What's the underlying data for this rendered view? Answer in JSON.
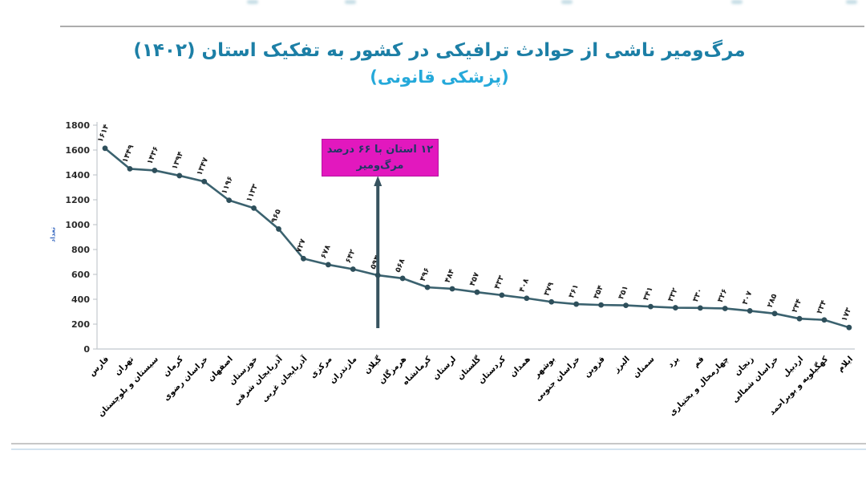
{
  "header": {
    "title_line1": "مرگ‌ومیر ناشی از حوادث ترافیکی در کشور به تفکیک استان (۱۴۰۲)",
    "title_line2": "(پزشکی قانونی)",
    "title_color": "#1C7FA6",
    "subtitle_color": "#25A9DA"
  },
  "annotation": {
    "text_line1": "۱۲ استان با ۶۶ درصد",
    "text_line2": "مرگ‌ومیر",
    "box_color": "#E218BE",
    "text_color": "#1F3864",
    "pointer_color": "#37535F",
    "marker_index": 11
  },
  "chart_data": {
    "type": "line",
    "title": "مرگ‌ومیر ناشی از حوادث ترافیکی در کشور به تفکیک استان (۱۴۰۲) (پزشکی قانونی)",
    "ylabel": "تعداد",
    "xlabel": "",
    "ylim": [
      0,
      1800
    ],
    "ytick_step": 200,
    "grid": false,
    "legend": "none",
    "digit_style": "persian",
    "line_color": "#3B626F",
    "marker_color": "#2E4F5B",
    "axis_color": "#b9bfc4",
    "categories": [
      "فارس",
      "تهران",
      "سیستان و بلوچستان",
      "کرمان",
      "خراسان رضوی",
      "اصفهان",
      "خوزستان",
      "آذربایجان شرقی",
      "آذربایجان غربی",
      "مرکزی",
      "مازندران",
      "گیلان",
      "هرمزگان",
      "کرمانشاه",
      "لرستان",
      "گلستان",
      "کردستان",
      "همدان",
      "بوشهر",
      "خراسان جنوبی",
      "قزوین",
      "البرز",
      "سمنان",
      "یزد",
      "قم",
      "چهارمحال و بختیاری",
      "زنجان",
      "خراسان شمالی",
      "اردبیل",
      "کهگیلویه و بویراحمد",
      "ایلام"
    ],
    "values": [
      1614,
      1449,
      1436,
      1394,
      1347,
      1196,
      1133,
      965,
      727,
      678,
      642,
      593,
      568,
      496,
      484,
      457,
      433,
      408,
      379,
      361,
      354,
      351,
      341,
      332,
      330,
      326,
      307,
      285,
      244,
      234,
      173
    ]
  }
}
